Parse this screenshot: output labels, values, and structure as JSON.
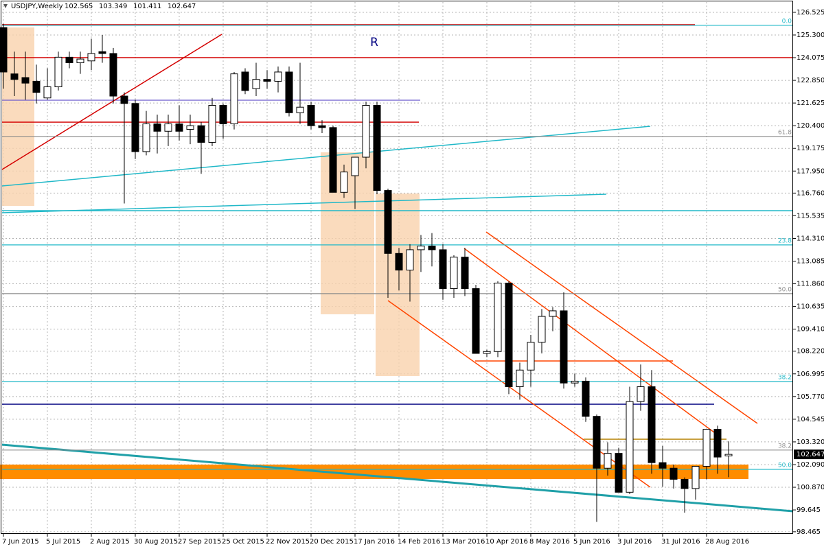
{
  "chart_data": {
    "type": "candlestick",
    "title": "USDJPY,Weekly",
    "categories": [
      "7 Jun 2015",
      null,
      null,
      null,
      "5 Jul 2015",
      null,
      null,
      null,
      "2 Aug 2015",
      null,
      null,
      null,
      "30 Aug 2015",
      null,
      null,
      null,
      "27 Sep 2015",
      null,
      null,
      null,
      "25 Oct 2015",
      null,
      null,
      null,
      "22 Nov 2015",
      null,
      null,
      null,
      "20 Dec 2015",
      null,
      null,
      null,
      "17 Jan 2016",
      null,
      null,
      null,
      "14 Feb 2016",
      null,
      null,
      null,
      "13 Mar 2016",
      null,
      null,
      null,
      "10 Apr 2016",
      null,
      null,
      null,
      "8 May 2016",
      null,
      null,
      null,
      "5 Jun 2016",
      null,
      null,
      null,
      "3 Jul 2016",
      null,
      null,
      null,
      "31 Jul 2016",
      null,
      null,
      null,
      "28 Aug 2016",
      null,
      null
    ],
    "open": [
      125.7,
      123.2,
      123.0,
      122.8,
      121.9,
      122.5,
      124.1,
      123.8,
      123.9,
      124.4,
      124.3,
      122.0,
      121.6,
      119.0,
      120.5,
      120.1,
      120.5,
      120.2,
      120.4,
      119.5,
      121.5,
      120.5,
      123.3,
      122.4,
      122.9,
      122.8,
      123.3,
      121.1,
      121.5,
      120.4,
      120.3,
      116.8,
      117.7,
      118.7,
      121.5,
      116.9,
      113.5,
      112.6,
      113.7,
      113.9,
      113.7,
      111.6,
      113.3,
      111.6,
      108.1,
      108.2,
      111.9,
      106.3,
      107.2,
      108.7,
      110.1,
      110.4,
      106.5,
      106.6,
      104.7,
      101.9,
      102.7,
      100.6,
      105.5,
      106.3,
      102.2,
      101.9,
      101.3,
      100.8,
      102.0,
      104.0,
      102.565
    ],
    "high": [
      125.9,
      124.4,
      124.4,
      123.7,
      123.5,
      124.4,
      124.4,
      124.4,
      125.1,
      125.3,
      124.6,
      122.2,
      121.8,
      121.2,
      121.0,
      121.0,
      121.5,
      121.0,
      120.6,
      121.9,
      121.6,
      123.3,
      123.5,
      123.8,
      123.4,
      123.6,
      123.6,
      123.8,
      121.7,
      120.7,
      120.4,
      118.3,
      118.7,
      121.7,
      121.7,
      117.0,
      113.8,
      114.0,
      114.5,
      114.6,
      114.0,
      113.4,
      113.8,
      111.8,
      108.3,
      112.0,
      112.0,
      107.6,
      109.1,
      110.5,
      110.6,
      111.4,
      107.0,
      106.8,
      104.8,
      103.3,
      103.0,
      106.3,
      107.5,
      107.2,
      103.1,
      102.1,
      101.4,
      102.0,
      104.0,
      104.2,
      103.349
    ],
    "low": [
      122.4,
      122.0,
      121.8,
      121.6,
      121.8,
      122.3,
      123.5,
      123.2,
      123.4,
      123.8,
      121.6,
      116.2,
      118.6,
      118.8,
      118.9,
      119.3,
      119.6,
      119.4,
      117.8,
      119.3,
      119.7,
      120.2,
      122.1,
      122.0,
      122.4,
      122.2,
      120.9,
      120.5,
      120.2,
      120.0,
      116.8,
      116.5,
      115.9,
      118.1,
      116.7,
      111.1,
      111.5,
      110.9,
      112.5,
      112.8,
      111.0,
      111.1,
      111.2,
      108.1,
      107.9,
      107.9,
      105.9,
      105.6,
      106.3,
      108.1,
      109.3,
      106.2,
      106.3,
      104.4,
      99.0,
      101.5,
      100.6,
      100.5,
      105.0,
      101.6,
      100.9,
      100.8,
      99.5,
      100.2,
      101.3,
      101.6,
      101.411
    ],
    "close": [
      123.3,
      122.9,
      122.7,
      122.2,
      122.5,
      124.1,
      123.8,
      124.0,
      124.3,
      124.3,
      122.0,
      121.6,
      119.0,
      120.5,
      120.1,
      120.5,
      120.1,
      120.4,
      119.5,
      121.5,
      120.5,
      123.2,
      122.3,
      122.9,
      122.8,
      123.3,
      121.1,
      121.4,
      120.4,
      120.3,
      116.8,
      117.9,
      118.7,
      121.5,
      116.9,
      113.5,
      112.6,
      113.7,
      113.9,
      113.7,
      111.6,
      113.3,
      111.6,
      108.1,
      108.2,
      111.9,
      106.3,
      107.2,
      108.7,
      110.1,
      110.4,
      106.5,
      106.6,
      104.7,
      101.9,
      102.7,
      100.6,
      105.5,
      106.3,
      102.2,
      101.9,
      101.3,
      100.8,
      102.0,
      104.0,
      102.5,
      102.647
    ],
    "up_color": "#ffffff",
    "down_color": "#000000",
    "ylim": [
      98.35,
      127.19
    ],
    "yticks": [
      126.525,
      {
        "value": 125.3,
        "label": "125.300"
      },
      124.075,
      {
        "value": 122.85,
        "label": "122.850"
      },
      121.625,
      {
        "value": 120.4,
        "label": "120.400"
      },
      119.175,
      {
        "value": 117.95,
        "label": "117.950"
      },
      {
        "value": 116.76,
        "label": "116.760"
      },
      115.535,
      {
        "value": 114.31,
        "label": "114.310"
      },
      113.085,
      {
        "value": 111.86,
        "label": "111.860"
      },
      110.635,
      {
        "value": 109.41,
        "label": "109.410"
      },
      {
        "value": 108.22,
        "label": "108.220"
      },
      106.995,
      {
        "value": 105.77,
        "label": "105.770"
      },
      104.545,
      {
        "value": 103.32,
        "label": "103.320"
      },
      {
        "value": 102.09,
        "label": "102.090"
      },
      {
        "value": 100.87,
        "label": "100.870"
      },
      99.645,
      98.465
    ],
    "grid": true,
    "levels": [
      {
        "label": "0.0",
        "value": 125.82,
        "color": "#20b8c8"
      },
      {
        "label": "61.8",
        "value": 119.82,
        "color": "#8c8c8c"
      },
      {
        "label": "23.8",
        "value": 113.96,
        "color": "#20b8c8"
      },
      {
        "label": "50.0",
        "value": 111.33,
        "color": "#8c8c8c"
      },
      {
        "label": "38.2",
        "value": 106.58,
        "color": "#20b8c8"
      },
      {
        "label": "38.2",
        "value": 102.88,
        "color": "#8c8c8c"
      },
      {
        "label": "50.0",
        "value": 101.84,
        "color": "#20b8c8"
      }
    ],
    "annotation": "R"
  }
}
